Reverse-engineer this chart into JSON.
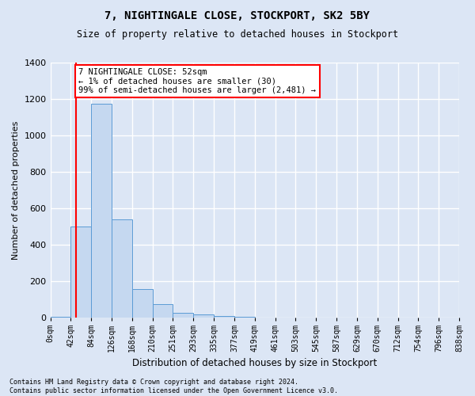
{
  "title": "7, NIGHTINGALE CLOSE, STOCKPORT, SK2 5BY",
  "subtitle": "Size of property relative to detached houses in Stockport",
  "xlabel": "Distribution of detached houses by size in Stockport",
  "ylabel": "Number of detached properties",
  "bar_values": [
    5,
    500,
    1175,
    540,
    160,
    75,
    30,
    20,
    10,
    8,
    0,
    0,
    0,
    0,
    0,
    0,
    0,
    0,
    0,
    0
  ],
  "bar_labels": [
    "0sqm",
    "42sqm",
    "84sqm",
    "126sqm",
    "168sqm",
    "210sqm",
    "251sqm",
    "293sqm",
    "335sqm",
    "377sqm",
    "419sqm",
    "461sqm",
    "503sqm",
    "545sqm",
    "587sqm",
    "629sqm",
    "670sqm",
    "712sqm",
    "754sqm",
    "796sqm",
    "838sqm"
  ],
  "bar_color": "#c5d8f0",
  "bar_edge_color": "#5b9bd5",
  "red_line_x": 1.24,
  "annotation_text": "7 NIGHTINGALE CLOSE: 52sqm\n← 1% of detached houses are smaller (30)\n99% of semi-detached houses are larger (2,481) →",
  "annotation_box_color": "white",
  "annotation_edge_color": "red",
  "ylim": [
    0,
    1400
  ],
  "yticks": [
    0,
    200,
    400,
    600,
    800,
    1000,
    1200,
    1400
  ],
  "footnote": "Contains HM Land Registry data © Crown copyright and database right 2024.\nContains public sector information licensed under the Open Government Licence v3.0.",
  "bg_color": "#dce6f5",
  "plot_bg_color": "#dce6f5",
  "grid_color": "white",
  "title_fontsize": 10,
  "subtitle_fontsize": 8.5,
  "ylabel_fontsize": 8,
  "xlabel_fontsize": 8.5,
  "tick_fontsize": 7,
  "footnote_fontsize": 6,
  "annotation_fontsize": 7.5
}
